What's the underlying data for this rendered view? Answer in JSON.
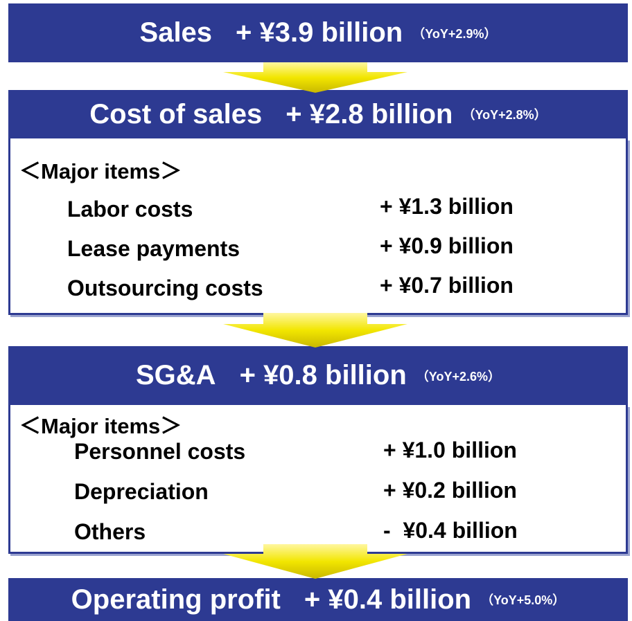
{
  "blocks": [
    {
      "label": "Sales",
      "amount": "+ ¥3.9 billion",
      "yoy": "（YoY+2.9%）"
    },
    {
      "label": "Cost of sales",
      "amount": "+ ¥2.8 billion",
      "yoy": "（YoY+2.8%）",
      "section": {
        "heading": "＜Major items＞",
        "items": [
          {
            "name": "Labor costs",
            "amount": "+ ¥1.3 billion"
          },
          {
            "name": "Lease payments",
            "amount": "+ ¥0.9 billion"
          },
          {
            "name": "Outsourcing costs",
            "amount": "+ ¥0.7 billion"
          }
        ]
      }
    },
    {
      "label": "SG&A",
      "amount": "+ ¥0.8 billion",
      "yoy": "（YoY+2.6%）",
      "section": {
        "heading": "＜Major items＞",
        "items": [
          {
            "name": "Personnel costs",
            "amount": "+ ¥1.0 billion"
          },
          {
            "name": "Depreciation",
            "amount": "+ ¥0.2 billion"
          },
          {
            "name": "Others",
            "amount": "-  ¥0.4 billion"
          }
        ]
      }
    },
    {
      "label": "Operating profit",
      "amount": "+ ¥0.4 billion",
      "yoy": "（YoY+5.0%）"
    }
  ]
}
